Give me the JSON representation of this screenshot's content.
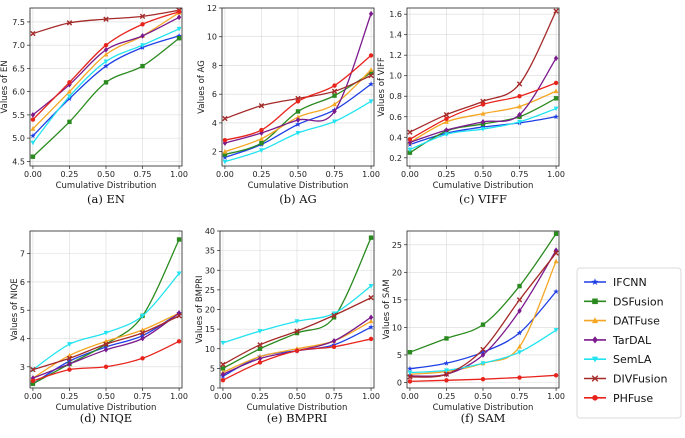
{
  "legend": [
    {
      "name": "IFCNN",
      "color": "#1f3fe6",
      "marker": "star"
    },
    {
      "name": "DSFusion",
      "color": "#2a8a1f",
      "marker": "square"
    },
    {
      "name": "DATFuse",
      "color": "#f5a623",
      "marker": "triangle"
    },
    {
      "name": "TarDAL",
      "color": "#7b1a8c",
      "marker": "diamond"
    },
    {
      "name": "SemLA",
      "color": "#22e3f0",
      "marker": "tri-down"
    },
    {
      "name": "DIVFusion",
      "color": "#a52a2a",
      "marker": "x"
    },
    {
      "name": "PHFuse",
      "color": "#e8231c",
      "marker": "circle"
    }
  ],
  "chart_data": [
    {
      "type": "line",
      "caption": "(a) EN",
      "xlabel": "Cumulative Distribution",
      "ylabel": "Values of EN",
      "xlim": [
        -0.02,
        1.02
      ],
      "ylim": [
        4.4,
        7.8
      ],
      "x": [
        0.0,
        0.25,
        0.5,
        0.75,
        1.0
      ],
      "xticks": [
        "0.00",
        "0.25",
        "0.50",
        "0.75",
        "1.00"
      ],
      "yticks": [
        4.5,
        5.0,
        5.5,
        6.0,
        6.5,
        7.0,
        7.5
      ],
      "yticklabels": [
        "4.5",
        "5.0",
        "5.5",
        "6.0",
        "6.5",
        "7.0",
        "7.5"
      ],
      "series": [
        {
          "name": "IFCNN",
          "values": [
            5.05,
            5.85,
            6.55,
            6.95,
            7.2
          ]
        },
        {
          "name": "DSFusion",
          "values": [
            4.6,
            5.35,
            6.2,
            6.55,
            7.15
          ]
        },
        {
          "name": "DATFuse",
          "values": [
            5.2,
            6.0,
            6.8,
            7.2,
            7.7
          ]
        },
        {
          "name": "TarDAL",
          "values": [
            5.5,
            6.15,
            6.9,
            7.2,
            7.6
          ]
        },
        {
          "name": "SemLA",
          "values": [
            4.9,
            5.9,
            6.65,
            7.0,
            7.35
          ]
        },
        {
          "name": "DIVFusion",
          "values": [
            7.25,
            7.48,
            7.56,
            7.62,
            7.75
          ]
        },
        {
          "name": "PHFuse",
          "values": [
            5.4,
            6.2,
            7.0,
            7.45,
            7.72
          ]
        }
      ]
    },
    {
      "type": "line",
      "caption": "(b) AG",
      "xlabel": "Cumulative Distribution",
      "ylabel": "Values of AG",
      "xlim": [
        -0.02,
        1.02
      ],
      "ylim": [
        1.0,
        12.0
      ],
      "x": [
        0.0,
        0.25,
        0.5,
        0.75,
        1.0
      ],
      "xticks": [
        "0.00",
        "0.25",
        "0.50",
        "0.75",
        "1.00"
      ],
      "yticks": [
        2,
        4,
        6,
        8,
        10,
        12
      ],
      "yticklabels": [
        "2",
        "4",
        "6",
        "8",
        "10",
        "12"
      ],
      "series": [
        {
          "name": "IFCNN",
          "values": [
            1.6,
            2.5,
            3.9,
            4.9,
            6.7
          ]
        },
        {
          "name": "DSFusion",
          "values": [
            1.8,
            2.6,
            4.8,
            5.9,
            7.5
          ]
        },
        {
          "name": "DATFuse",
          "values": [
            2.0,
            2.9,
            4.4,
            5.3,
            7.7
          ]
        },
        {
          "name": "TarDAL",
          "values": [
            2.6,
            3.3,
            4.2,
            4.8,
            11.6
          ]
        },
        {
          "name": "SemLA",
          "values": [
            1.3,
            2.1,
            3.3,
            4.1,
            5.5
          ]
        },
        {
          "name": "DIVFusion",
          "values": [
            4.3,
            5.2,
            5.7,
            6.2,
            7.3
          ]
        },
        {
          "name": "PHFuse",
          "values": [
            2.8,
            3.5,
            5.5,
            6.6,
            8.7
          ]
        }
      ]
    },
    {
      "type": "line",
      "caption": "(c) VIFF",
      "xlabel": "Cumulative Distribution",
      "ylabel": "Values of VIFF",
      "xlim": [
        -0.02,
        1.02
      ],
      "ylim": [
        0.12,
        1.66
      ],
      "x": [
        0.0,
        0.25,
        0.5,
        0.75,
        1.0
      ],
      "xticks": [
        "0.00",
        "0.25",
        "0.50",
        "0.75",
        "1.00"
      ],
      "yticks": [
        0.2,
        0.4,
        0.6,
        0.8,
        1.0,
        1.2,
        1.4,
        1.6
      ],
      "yticklabels": [
        "0.2",
        "0.4",
        "0.6",
        "0.8",
        "1.0",
        "1.2",
        "1.4",
        "1.6"
      ],
      "series": [
        {
          "name": "IFCNN",
          "values": [
            0.33,
            0.44,
            0.5,
            0.54,
            0.6
          ]
        },
        {
          "name": "DSFusion",
          "values": [
            0.25,
            0.46,
            0.53,
            0.6,
            0.78
          ]
        },
        {
          "name": "DATFuse",
          "values": [
            0.35,
            0.55,
            0.63,
            0.7,
            0.85
          ]
        },
        {
          "name": "TarDAL",
          "values": [
            0.35,
            0.47,
            0.55,
            0.62,
            1.17
          ]
        },
        {
          "name": "SemLA",
          "values": [
            0.28,
            0.43,
            0.48,
            0.55,
            0.68
          ]
        },
        {
          "name": "DIVFusion",
          "values": [
            0.45,
            0.62,
            0.75,
            0.92,
            1.63
          ]
        },
        {
          "name": "PHFuse",
          "values": [
            0.38,
            0.58,
            0.72,
            0.8,
            0.93
          ]
        }
      ]
    },
    {
      "type": "line",
      "caption": "(d) NIQE",
      "xlabel": "Cumulative Distribution",
      "ylabel": "Values of NIQE",
      "xlim": [
        -0.02,
        1.02
      ],
      "ylim": [
        2.25,
        7.8
      ],
      "x": [
        0.0,
        0.25,
        0.5,
        0.75,
        1.0
      ],
      "xticks": [
        "0.00",
        "0.25",
        "0.50",
        "0.75",
        "1.00"
      ],
      "yticks": [
        3,
        4,
        5,
        6,
        7
      ],
      "yticklabels": [
        "3",
        "4",
        "5",
        "6",
        "7"
      ],
      "series": [
        {
          "name": "IFCNN",
          "values": [
            2.4,
            3.2,
            3.7,
            4.1,
            4.9
          ]
        },
        {
          "name": "DSFusion",
          "values": [
            2.4,
            3.1,
            3.8,
            4.8,
            7.5
          ]
        },
        {
          "name": "DATFuse",
          "values": [
            2.6,
            3.4,
            3.9,
            4.3,
            4.9
          ]
        },
        {
          "name": "TarDAL",
          "values": [
            2.6,
            3.1,
            3.6,
            4.0,
            4.9
          ]
        },
        {
          "name": "SemLA",
          "values": [
            2.9,
            3.8,
            4.2,
            4.8,
            6.3
          ]
        },
        {
          "name": "DIVFusion",
          "values": [
            2.9,
            3.3,
            3.8,
            4.2,
            4.8
          ]
        },
        {
          "name": "PHFuse",
          "values": [
            2.5,
            2.9,
            3.0,
            3.3,
            3.9
          ]
        }
      ]
    },
    {
      "type": "line",
      "caption": "(e) BMPRI",
      "xlabel": "Cumulative Distribution",
      "ylabel": "Values of BMPRI",
      "xlim": [
        -0.02,
        1.02
      ],
      "ylim": [
        0,
        40
      ],
      "x": [
        0.0,
        0.25,
        0.5,
        0.75,
        1.0
      ],
      "xticks": [
        "0.00",
        "0.25",
        "0.50",
        "0.75",
        "1.00"
      ],
      "yticks": [
        0,
        5,
        10,
        15,
        20,
        25,
        30,
        35,
        40
      ],
      "yticklabels": [
        "0",
        "5",
        "10",
        "15",
        "20",
        "25",
        "30",
        "35",
        "40"
      ],
      "series": [
        {
          "name": "IFCNN",
          "values": [
            3,
            8,
            9.5,
            11,
            15.5
          ]
        },
        {
          "name": "DSFusion",
          "values": [
            5,
            10,
            14,
            18,
            38.3
          ]
        },
        {
          "name": "DATFuse",
          "values": [
            4,
            8,
            10,
            12,
            17
          ]
        },
        {
          "name": "TarDAL",
          "values": [
            3.5,
            7.5,
            9.5,
            12,
            18
          ]
        },
        {
          "name": "SemLA",
          "values": [
            11.5,
            14.5,
            17,
            19,
            26
          ]
        },
        {
          "name": "DIVFusion",
          "values": [
            6,
            11,
            14.5,
            18.5,
            23
          ]
        },
        {
          "name": "PHFuse",
          "values": [
            2,
            6.5,
            9.5,
            10.5,
            12.5
          ]
        }
      ]
    },
    {
      "type": "line",
      "caption": "(f) SAM",
      "xlabel": "Cumulative Distribution",
      "ylabel": "Values of SAM",
      "xlim": [
        -0.02,
        1.02
      ],
      "ylim": [
        -1,
        27.5
      ],
      "x": [
        0.0,
        0.25,
        0.5,
        0.75,
        1.0
      ],
      "xticks": [
        "0.00",
        "0.25",
        "0.50",
        "0.75",
        "1.00"
      ],
      "yticks": [
        0,
        5,
        10,
        15,
        20,
        25
      ],
      "yticklabels": [
        "0",
        "5",
        "10",
        "15",
        "20",
        "25"
      ],
      "series": [
        {
          "name": "IFCNN",
          "values": [
            2.5,
            3.5,
            5.5,
            9,
            16.5
          ]
        },
        {
          "name": "DSFusion",
          "values": [
            5.5,
            8,
            10.5,
            17.5,
            27
          ]
        },
        {
          "name": "DATFuse",
          "values": [
            1.5,
            2,
            3.5,
            6.5,
            22
          ]
        },
        {
          "name": "TarDAL",
          "values": [
            1.2,
            1.5,
            5,
            13,
            24
          ]
        },
        {
          "name": "SemLA",
          "values": [
            1.8,
            2.2,
            3.5,
            5.5,
            9.5
          ]
        },
        {
          "name": "DIVFusion",
          "values": [
            1,
            1.5,
            6,
            15,
            23.5
          ]
        },
        {
          "name": "PHFuse",
          "values": [
            0.2,
            0.4,
            0.6,
            0.9,
            1.3
          ]
        }
      ]
    }
  ]
}
